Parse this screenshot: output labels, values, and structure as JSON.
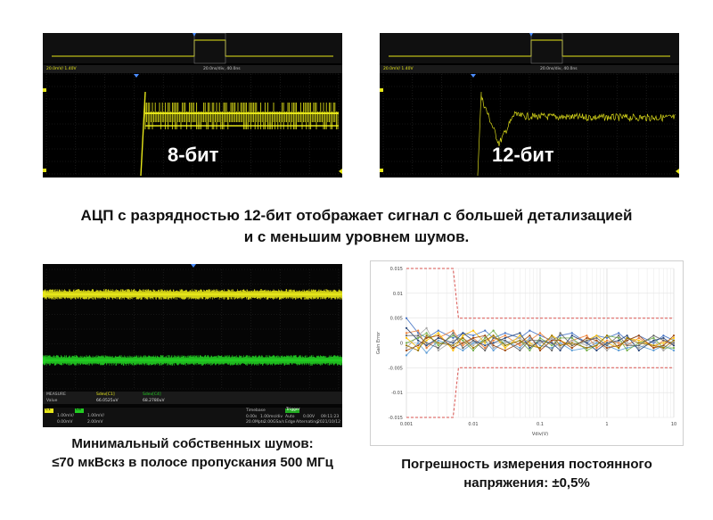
{
  "scope_8bit": {
    "label": "8-бит",
    "scale_text": "20.0mV/ 1.40V",
    "timebase_text": "20.0ns/div, 40.0ns"
  },
  "scope_12bit": {
    "label": "12-бит",
    "scale_text": "20.0mV/ 1.40V",
    "timebase_text": "20.0ns/div, 40.0ns"
  },
  "headline": {
    "line1": "АЦП с разрядностью 12-бит отображает сигнал с большей детализацией",
    "line2": "и с меньшим уровнем шумов."
  },
  "noise_scope": {
    "measure_label": "MEASURE",
    "ch1_header": "Sdev[C1]",
    "ch2_header": "Sdev[C4]",
    "value_label": "Value",
    "ch1_value": "66.0525uV",
    "ch2_value": "68.2780uV",
    "timebase_label": "Timebase",
    "trigger_label": "Trigger",
    "timebase_val1": "0.00s",
    "timebase_val2": "1.00ms/div",
    "sample_val1": "20.0Mpts",
    "sample_val2": "2.00GSa/s",
    "trigger_mode": "Auto",
    "trigger_level": "0.00V",
    "trigger_type": "Edge",
    "trigger_coupling": "Alternating",
    "time": "09:11:23",
    "date": "2021/10/12",
    "c1_label": "C1",
    "c1_scale": "1.00mV/",
    "c1_offset": "0.00mV",
    "c4_label": "C4",
    "c4_scale": "1.00mV/",
    "c4_offset": "2.00mV",
    "colors": {
      "ch1": "#e6e619",
      "ch2": "#22cc22"
    }
  },
  "noise_caption": {
    "line1": "Минимальный собственных шумов:",
    "line2": "≤70 мкВскз в полосе пропускания 500 МГц"
  },
  "gain_chart_caption": {
    "line1": "Погрешность измерения постоянного",
    "line2": "напряжения: ±0,5%"
  },
  "chart_data": {
    "type": "line",
    "title": "",
    "xlabel": "Vdiv(V)",
    "ylabel": "Gain Error",
    "xscale": "log",
    "xlim": [
      0.001,
      10
    ],
    "ylim": [
      -0.015,
      0.015
    ],
    "x_ticks": [
      "0.001",
      "0.01",
      "0.1",
      "1",
      "10"
    ],
    "y_ticks": [
      "0.015",
      "0.01",
      "0.005",
      "0",
      "-0.005",
      "-0.01",
      "-0.015"
    ],
    "limit_lines": {
      "color": "#d9534f",
      "upper": [
        [
          0.001,
          0.015
        ],
        [
          0.005,
          0.015
        ],
        [
          0.006,
          0.005
        ],
        [
          10,
          0.005
        ]
      ],
      "lower": [
        [
          0.001,
          -0.015
        ],
        [
          0.005,
          -0.015
        ],
        [
          0.006,
          -0.005
        ],
        [
          10,
          -0.005
        ]
      ]
    },
    "series_colors": [
      "#4472c4",
      "#ed7d31",
      "#a5a5a5",
      "#ffc000",
      "#5b9bd5",
      "#70ad47",
      "#264478",
      "#9e480e",
      "#636363",
      "#997300",
      "#43682b",
      "#7cafdd"
    ],
    "x": [
      0.001,
      0.0015,
      0.002,
      0.003,
      0.005,
      0.007,
      0.01,
      0.015,
      0.02,
      0.03,
      0.05,
      0.07,
      0.1,
      0.15,
      0.2,
      0.3,
      0.5,
      0.7,
      1,
      1.5,
      2,
      3,
      5,
      7,
      10
    ],
    "series": [
      {
        "values": [
          0.005,
          0.002,
          0.001,
          0.0025,
          0.001,
          0.002,
          0.0015,
          0.0025,
          0.001,
          0.002,
          0.001,
          0.0025,
          0.0015,
          0.0005,
          0.0015,
          0.002,
          0.0,
          0.0015,
          0.001,
          0.002,
          0.0005,
          0.0015,
          0.0,
          0.0015,
          0.0005
        ]
      },
      {
        "values": [
          0.002,
          0.0025,
          -0.001,
          0.001,
          0.0025,
          -0.0005,
          0.001,
          -0.001,
          0.0005,
          0.0015,
          -0.0005,
          0.0005,
          0.002,
          0.0,
          -0.0005,
          0.0005,
          0.0015,
          -0.001,
          0.0005,
          0.0,
          -0.0005,
          0.001,
          -0.001,
          0.0005,
          -0.0005
        ]
      },
      {
        "values": [
          -0.001,
          0.0015,
          0.003,
          -0.0015,
          0.0005,
          0.001,
          -0.0005,
          0.0015,
          -0.001,
          0.0,
          0.001,
          -0.0005,
          0.0,
          0.001,
          -0.001,
          0.0005,
          -0.0005,
          0.0005,
          -0.0015,
          0.0005,
          0.0,
          -0.001,
          0.0005,
          -0.0015,
          0.0
        ]
      },
      {
        "values": [
          0.001,
          -0.001,
          0.0005,
          0.002,
          -0.0015,
          0.0015,
          0.0025,
          0.0,
          0.0015,
          -0.001,
          0.0015,
          0.0,
          -0.001,
          0.0015,
          0.0005,
          -0.0005,
          0.0005,
          0.0015,
          0.0,
          -0.001,
          0.001,
          0.0005,
          -0.0005,
          0.0,
          0.001
        ]
      },
      {
        "values": [
          -0.0025,
          0.0,
          -0.002,
          0.0005,
          -0.0005,
          -0.0015,
          0.0,
          0.0005,
          -0.0015,
          0.0005,
          -0.001,
          0.001,
          -0.0005,
          -0.001,
          0.0,
          -0.0015,
          -0.001,
          0.0,
          -0.0005,
          -0.0015,
          -0.001,
          -0.0005,
          -0.0015,
          -0.0005,
          -0.0015
        ]
      },
      {
        "values": [
          0.0,
          0.001,
          0.002,
          -0.0005,
          0.0015,
          0.0005,
          -0.0015,
          0.001,
          0.0025,
          -0.0005,
          0.0005,
          -0.0015,
          0.001,
          -0.0005,
          0.001,
          0.001,
          -0.0015,
          -0.0005,
          0.0015,
          0.001,
          -0.0015,
          0.0,
          0.001,
          -0.001,
          -0.001
        ]
      },
      {
        "values": [
          0.003,
          0.0005,
          -0.0005,
          0.001,
          0.0,
          0.002,
          0.0005,
          -0.0005,
          0.0,
          0.001,
          0.002,
          -0.001,
          0.0005,
          0.0,
          -0.0015,
          0.0015,
          0.0,
          -0.0015,
          0.0,
          0.0005,
          0.0015,
          -0.0015,
          0.0005,
          0.001,
          -0.0005
        ]
      },
      {
        "values": [
          -0.0015,
          -0.0005,
          0.001,
          0.0015,
          -0.001,
          0.0,
          0.001,
          0.0015,
          -0.0005,
          -0.0015,
          0.0,
          0.0015,
          -0.0015,
          0.0005,
          0.0005,
          -0.001,
          0.001,
          0.0005,
          -0.001,
          -0.0005,
          0.0005,
          0.0015,
          -0.001,
          -0.0005,
          0.0015
        ]
      },
      {
        "values": [
          0.0015,
          0.0015,
          0.0,
          -0.001,
          0.002,
          -0.001,
          0.0005,
          -0.0015,
          0.001,
          0.0005,
          -0.0015,
          0.0005,
          0.0005,
          -0.0015,
          0.002,
          -0.0005,
          0.0005,
          0.001,
          -0.0005,
          0.0015,
          -0.0005,
          -0.0005,
          0.0015,
          0.0005,
          0.0
        ]
      },
      {
        "values": [
          -0.0005,
          -0.0015,
          0.0015,
          0.0,
          -0.0005,
          0.001,
          -0.001,
          0.0005,
          0.0015,
          -0.0005,
          0.0005,
          -0.0005,
          -0.001,
          0.0015,
          -0.0005,
          0.0,
          -0.001,
          -0.0005,
          0.0015,
          -0.001,
          0.001,
          0.0,
          -0.0005,
          -0.001,
          0.0005
        ]
      }
    ]
  }
}
